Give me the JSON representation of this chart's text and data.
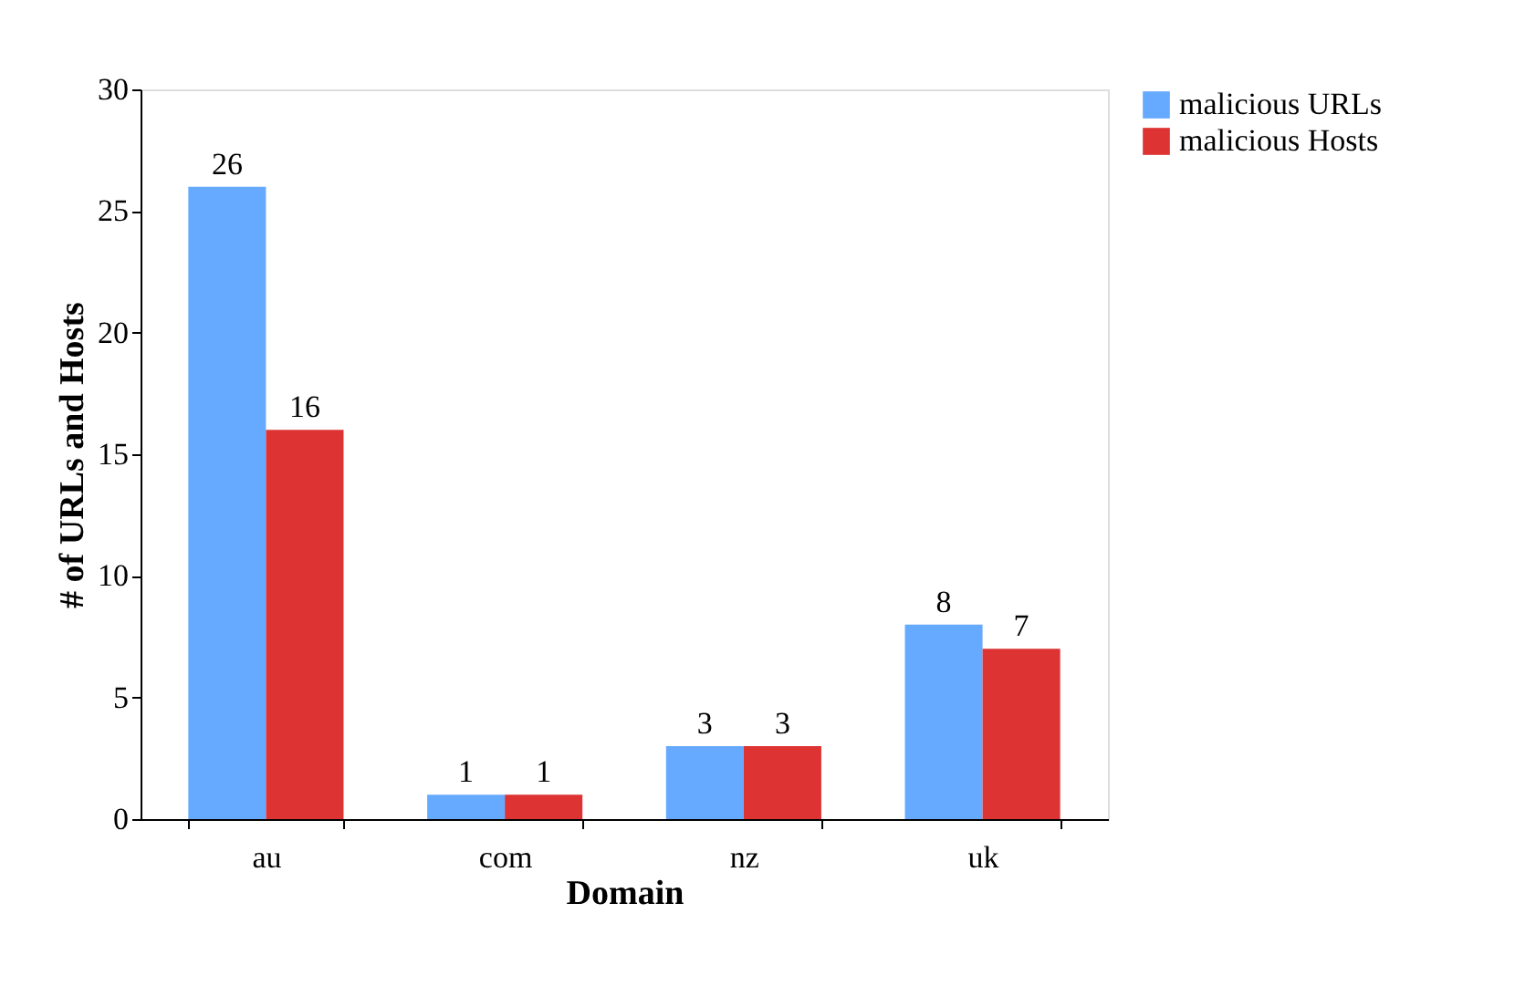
{
  "chart_data": {
    "type": "bar",
    "xlabel": "Domain",
    "ylabel": "# of URLs and Hosts",
    "categories": [
      "au",
      "com",
      "nz",
      "uk"
    ],
    "series": [
      {
        "name": "malicious URLs",
        "color": "#66aaff",
        "values": [
          26,
          1,
          3,
          8
        ]
      },
      {
        "name": "malicious Hosts",
        "color": "#dd3333",
        "values": [
          16,
          1,
          3,
          7
        ]
      }
    ],
    "ylim": [
      0,
      30
    ],
    "yticks": [
      0,
      5,
      10,
      15,
      20,
      25,
      30
    ],
    "grid": false,
    "legend": "right",
    "data_labels": true
  }
}
